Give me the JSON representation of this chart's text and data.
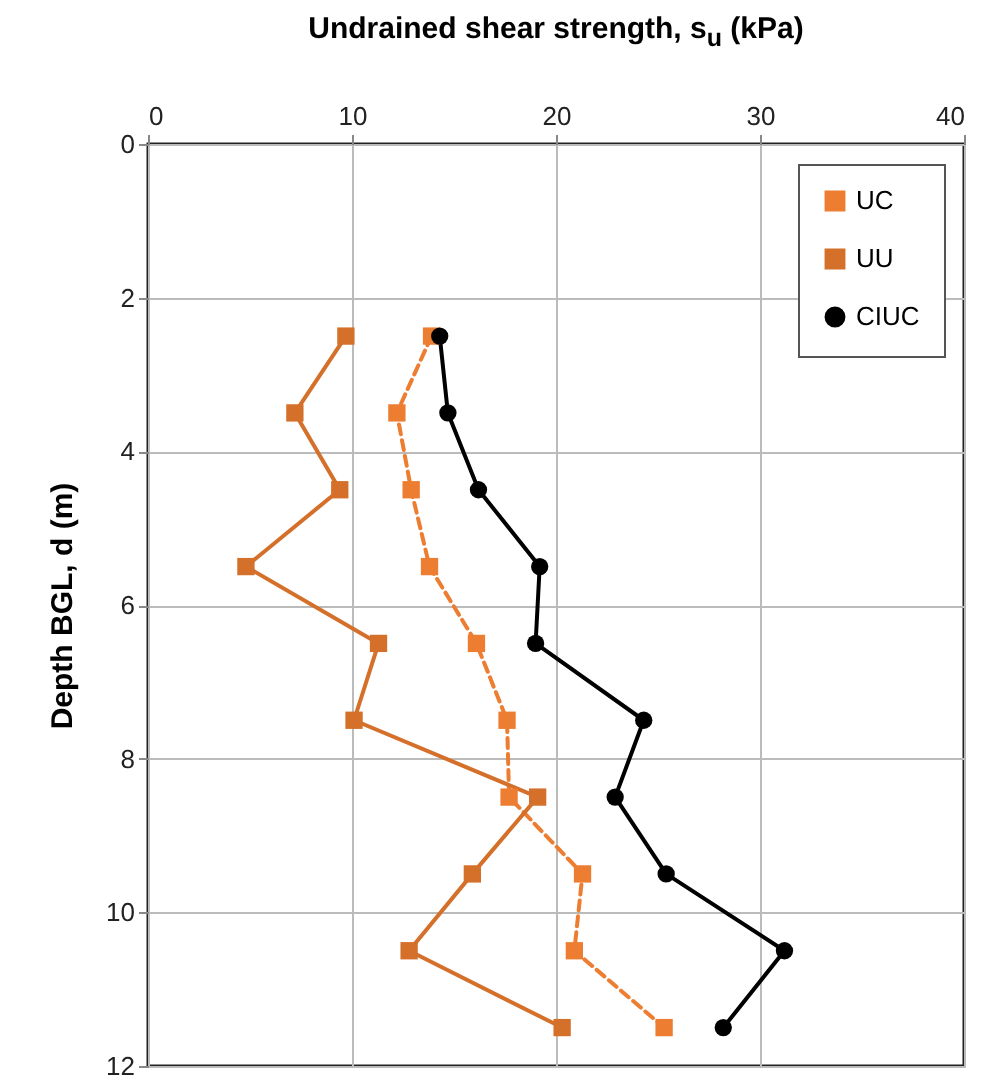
{
  "chart_data": {
    "type": "line",
    "orientation": "horizontal",
    "xlabel": "Undrained shear strength, s$_{u}$ (kPa)",
    "ylabel": "Depth BGL, d (m)",
    "x": [
      2.5,
      3.5,
      4.5,
      5.5,
      6.5,
      7.5,
      8.5,
      9.5,
      10.5,
      11.5
    ],
    "series": [
      {
        "name": "UC",
        "color": "#ed7d31",
        "marker": "square",
        "line_style": "dashed",
        "values": [
          13.9,
          12.2,
          12.9,
          13.8,
          16.1,
          17.6,
          17.7,
          21.3,
          20.9,
          25.3
        ]
      },
      {
        "name": "UU",
        "color": "#d4702a",
        "marker": "square",
        "line_style": "solid",
        "values": [
          9.7,
          7.2,
          9.4,
          4.8,
          11.3,
          10.1,
          19.1,
          15.9,
          12.8,
          20.3
        ]
      },
      {
        "name": "CIUC",
        "color": "#000000",
        "marker": "circle",
        "line_style": "solid",
        "values": [
          14.3,
          14.7,
          16.2,
          19.2,
          19.0,
          24.3,
          22.9,
          25.4,
          31.2,
          28.2
        ]
      }
    ],
    "xlim": [
      0,
      40
    ],
    "xticks": [
      0,
      10,
      20,
      30,
      40
    ],
    "ylim": [
      12,
      0
    ],
    "yticks": [
      0,
      2,
      4,
      6,
      8,
      10,
      12
    ],
    "grid": true,
    "legend": "top right"
  }
}
